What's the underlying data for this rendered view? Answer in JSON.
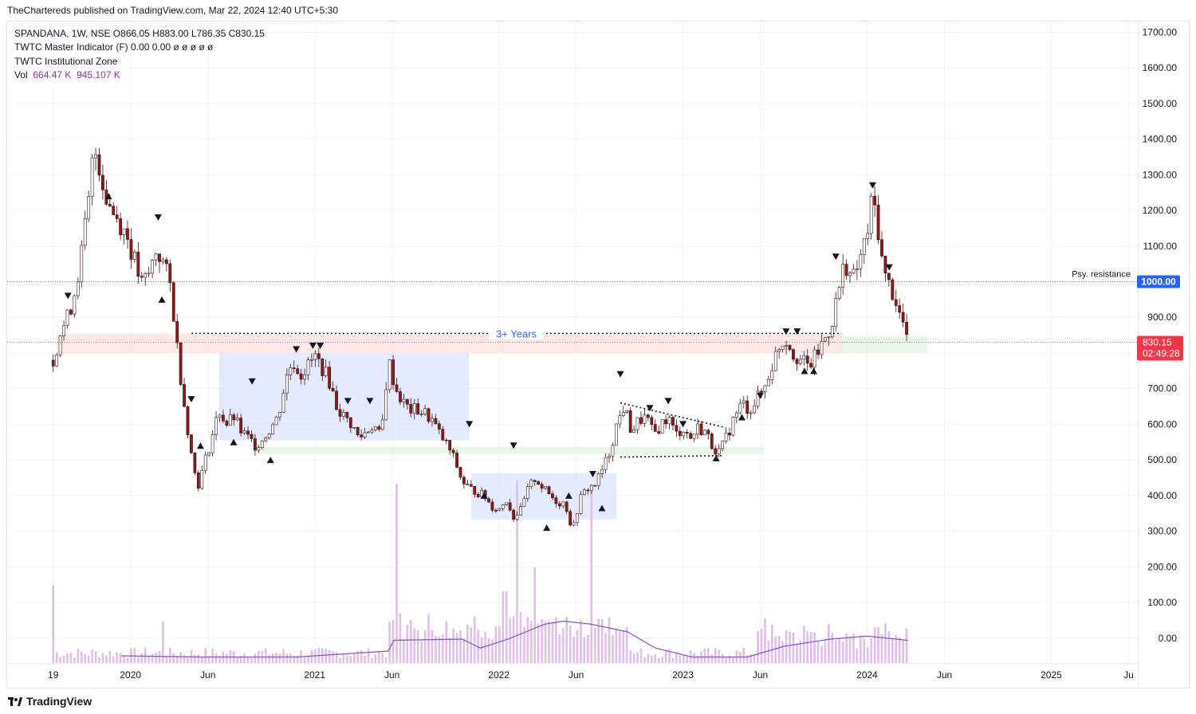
{
  "publisher_line": "TheChartereds published on TradingView.com, Mar 22, 2024 12:40 UTC+5:30",
  "legend": {
    "symbol_line": "SPANDANA, 1W, NSE  O866.05  H883.00  L786.35  C830.15",
    "indicator1": "TWTC Master Indicator (F)  0.00  0.00  ø  ø  ø  ø  ø",
    "indicator2": "TWTC Institutional Zone",
    "vol_label": "Vol",
    "vol_value1": "664.47 K",
    "vol_value2": "945.107 K"
  },
  "footer": {
    "brand": "TradingView"
  },
  "colors": {
    "up": "#26a69a",
    "down": "#ef5350",
    "candle_body_up": "#ffffff",
    "candle_body_down": "#8b1a1a",
    "volume": "#e1bee7",
    "volume_ma": "#7e57c2",
    "price_tag": "#f23645",
    "resistance_tag": "#2962ff",
    "blue_zone": "#dbe4fd",
    "red_zone": "#fde0e0",
    "green_zone": "#e3f3e3"
  },
  "chart_data": {
    "type": "candlestick",
    "symbol": "SPANDANA",
    "timeframe": "1W",
    "exchange": "NSE",
    "ohlc_last": {
      "open": 866.05,
      "high": 883.0,
      "low": 786.35,
      "close": 830.15
    },
    "last_price_label": "830.15",
    "countdown_label": "02:49:28",
    "y_axis": {
      "ticks": [
        "1700.00",
        "1600.00",
        "1500.00",
        "1400.00",
        "1300.00",
        "1200.00",
        "1100.00",
        "1000.00",
        "900.00",
        "800.00",
        "700.00",
        "600.00",
        "500.00",
        "400.00",
        "300.00",
        "200.00",
        "100.00",
        "0.00"
      ],
      "tick_values": [
        1700,
        1600,
        1500,
        1400,
        1300,
        1200,
        1100,
        1000,
        900,
        800,
        700,
        600,
        500,
        400,
        300,
        200,
        100,
        0
      ],
      "range": [
        -72,
        1730
      ]
    },
    "x_axis": {
      "ticks": [
        "19",
        "2020",
        "Jun",
        "2021",
        "Jun",
        "2022",
        "Jun",
        "2023",
        "Jun",
        "2024",
        "Jun",
        "2025",
        "Ju"
      ],
      "tick_years": [
        2019.58,
        2020.0,
        2020.42,
        2021.0,
        2021.42,
        2022.0,
        2022.42,
        2023.0,
        2023.42,
        2024.0,
        2024.42,
        2025.0,
        2025.42
      ],
      "range_years": [
        2019.33,
        2025.47
      ]
    },
    "price_path": [
      [
        2019.58,
        780
      ],
      [
        2019.62,
        860
      ],
      [
        2019.66,
        900
      ],
      [
        2019.7,
        980
      ],
      [
        2019.74,
        1100
      ],
      [
        2019.78,
        1250
      ],
      [
        2019.8,
        1380
      ],
      [
        2019.83,
        1330
      ],
      [
        2019.86,
        1250
      ],
      [
        2019.9,
        1200
      ],
      [
        2019.94,
        1170
      ],
      [
        2019.98,
        1130
      ],
      [
        2020.02,
        1060
      ],
      [
        2020.06,
        990
      ],
      [
        2020.1,
        1020
      ],
      [
        2020.14,
        1090
      ],
      [
        2020.18,
        1050
      ],
      [
        2020.22,
        980
      ],
      [
        2020.25,
        830
      ],
      [
        2020.28,
        700
      ],
      [
        2020.31,
        590
      ],
      [
        2020.34,
        480
      ],
      [
        2020.37,
        430
      ],
      [
        2020.4,
        490
      ],
      [
        2020.44,
        560
      ],
      [
        2020.48,
        640
      ],
      [
        2020.52,
        600
      ],
      [
        2020.56,
        620
      ],
      [
        2020.6,
        580
      ],
      [
        2020.64,
        560
      ],
      [
        2020.68,
        540
      ],
      [
        2020.72,
        560
      ],
      [
        2020.76,
        590
      ],
      [
        2020.8,
        620
      ],
      [
        2020.84,
        720
      ],
      [
        2020.88,
        780
      ],
      [
        2020.92,
        740
      ],
      [
        2020.96,
        760
      ],
      [
        2021.0,
        790
      ],
      [
        2021.04,
        760
      ],
      [
        2021.08,
        720
      ],
      [
        2021.12,
        650
      ],
      [
        2021.16,
        620
      ],
      [
        2021.2,
        600
      ],
      [
        2021.24,
        560
      ],
      [
        2021.28,
        580
      ],
      [
        2021.32,
        600
      ],
      [
        2021.36,
        560
      ],
      [
        2021.4,
        780
      ],
      [
        2021.44,
        700
      ],
      [
        2021.48,
        660
      ],
      [
        2021.52,
        640
      ],
      [
        2021.56,
        640
      ],
      [
        2021.6,
        630
      ],
      [
        2021.64,
        610
      ],
      [
        2021.68,
        570
      ],
      [
        2021.72,
        540
      ],
      [
        2021.76,
        500
      ],
      [
        2021.8,
        440
      ],
      [
        2021.84,
        420
      ],
      [
        2021.88,
        410
      ],
      [
        2021.92,
        400
      ],
      [
        2021.96,
        370
      ],
      [
        2022.0,
        360
      ],
      [
        2022.04,
        390
      ],
      [
        2022.08,
        340
      ],
      [
        2022.12,
        360
      ],
      [
        2022.16,
        420
      ],
      [
        2022.2,
        450
      ],
      [
        2022.24,
        420
      ],
      [
        2022.28,
        400
      ],
      [
        2022.32,
        380
      ],
      [
        2022.36,
        380
      ],
      [
        2022.4,
        300
      ],
      [
        2022.44,
        390
      ],
      [
        2022.48,
        420
      ],
      [
        2022.52,
        430
      ],
      [
        2022.56,
        470
      ],
      [
        2022.6,
        520
      ],
      [
        2022.64,
        600
      ],
      [
        2022.68,
        650
      ],
      [
        2022.72,
        580
      ],
      [
        2022.76,
        610
      ],
      [
        2022.8,
        620
      ],
      [
        2022.84,
        570
      ],
      [
        2022.88,
        600
      ],
      [
        2022.92,
        620
      ],
      [
        2022.96,
        570
      ],
      [
        2023.0,
        590
      ],
      [
        2023.04,
        560
      ],
      [
        2023.08,
        590
      ],
      [
        2023.12,
        580
      ],
      [
        2023.16,
        540
      ],
      [
        2023.2,
        520
      ],
      [
        2023.24,
        570
      ],
      [
        2023.28,
        620
      ],
      [
        2023.32,
        660
      ],
      [
        2023.36,
        640
      ],
      [
        2023.4,
        670
      ],
      [
        2023.44,
        700
      ],
      [
        2023.48,
        760
      ],
      [
        2023.52,
        820
      ],
      [
        2023.56,
        840
      ],
      [
        2023.6,
        800
      ],
      [
        2023.64,
        780
      ],
      [
        2023.68,
        760
      ],
      [
        2023.72,
        790
      ],
      [
        2023.76,
        830
      ],
      [
        2023.8,
        870
      ],
      [
        2023.84,
        960
      ],
      [
        2023.88,
        1060
      ],
      [
        2023.92,
        1000
      ],
      [
        2023.96,
        1060
      ],
      [
        2024.0,
        1130
      ],
      [
        2024.03,
        1240
      ],
      [
        2024.06,
        1150
      ],
      [
        2024.09,
        1020
      ],
      [
        2024.12,
        990
      ],
      [
        2024.15,
        960
      ],
      [
        2024.18,
        900
      ],
      [
        2024.21,
        866
      ],
      [
        2024.22,
        830
      ]
    ],
    "volume_peaks": [
      [
        2019.58,
        130
      ],
      [
        2020.18,
        70
      ],
      [
        2021.44,
        300
      ],
      [
        2022.03,
        120
      ],
      [
        2022.1,
        305
      ],
      [
        2022.2,
        160
      ],
      [
        2022.51,
        300
      ],
      [
        2022.7,
        60
      ],
      [
        2023.45,
        75
      ],
      [
        2024.05,
        60
      ]
    ],
    "volume_scale_max": 400,
    "volume_ma_path": [
      [
        2019.95,
        12
      ],
      [
        2020.4,
        10
      ],
      [
        2020.9,
        10
      ],
      [
        2021.4,
        20
      ],
      [
        2021.43,
        38
      ],
      [
        2021.8,
        40
      ],
      [
        2021.9,
        25
      ],
      [
        2022.05,
        40
      ],
      [
        2022.25,
        65
      ],
      [
        2022.35,
        70
      ],
      [
        2022.5,
        65
      ],
      [
        2022.7,
        52
      ],
      [
        2022.85,
        25
      ],
      [
        2023.05,
        10
      ],
      [
        2023.35,
        10
      ],
      [
        2023.55,
        28
      ],
      [
        2023.8,
        40
      ],
      [
        2024.0,
        45
      ],
      [
        2024.22,
        38
      ]
    ],
    "annotations": {
      "years_label": "3+ Years",
      "resistance_label": "Psy. resistance",
      "resistance_value": 1000,
      "resistance_tag": "1000.00",
      "years_line_value": 855,
      "years_line_span": [
        2020.33,
        2023.86
      ]
    },
    "zones": [
      {
        "kind": "red",
        "from": [
          2019.6,
          855
        ],
        "to": [
          2023.87,
          800
        ]
      },
      {
        "kind": "blue",
        "from": [
          2020.48,
          800
        ],
        "to": [
          2021.84,
          555
        ]
      },
      {
        "kind": "blue",
        "from": [
          2021.85,
          463
        ],
        "to": [
          2022.64,
          333
        ]
      },
      {
        "kind": "green",
        "from": [
          2020.68,
          537
        ],
        "to": [
          2023.44,
          517
        ]
      },
      {
        "kind": "green",
        "from": [
          2023.86,
          848
        ],
        "to": [
          2024.33,
          800
        ]
      }
    ],
    "triangle_lines": [
      {
        "from": [
          2022.66,
          660
        ],
        "to": [
          2023.22,
          592
        ]
      },
      {
        "from": [
          2022.66,
          508
        ],
        "to": [
          2023.22,
          512
        ]
      }
    ],
    "markers_down": [
      [
        2019.66,
        960
      ],
      [
        2020.15,
        1180
      ],
      [
        2020.33,
        670
      ],
      [
        2020.66,
        720
      ],
      [
        2020.9,
        810
      ],
      [
        2020.99,
        820
      ],
      [
        2021.03,
        820
      ],
      [
        2021.18,
        665
      ],
      [
        2021.3,
        665
      ],
      [
        2021.84,
        600
      ],
      [
        2022.08,
        540
      ],
      [
        2022.51,
        460
      ],
      [
        2022.66,
        740
      ],
      [
        2022.82,
        645
      ],
      [
        2022.92,
        665
      ],
      [
        2023.0,
        600
      ],
      [
        2023.42,
        680
      ],
      [
        2023.56,
        860
      ],
      [
        2023.62,
        860
      ],
      [
        2023.83,
        1070
      ],
      [
        2024.03,
        1270
      ],
      [
        2024.12,
        1040
      ]
    ],
    "markers_up": [
      [
        2019.88,
        1240
      ],
      [
        2020.17,
        950
      ],
      [
        2020.38,
        540
      ],
      [
        2020.56,
        550
      ],
      [
        2020.76,
        500
      ],
      [
        2021.92,
        400
      ],
      [
        2022.26,
        310
      ],
      [
        2022.38,
        400
      ],
      [
        2022.56,
        365
      ],
      [
        2023.18,
        505
      ],
      [
        2023.32,
        620
      ],
      [
        2023.66,
        750
      ],
      [
        2023.71,
        750
      ]
    ]
  }
}
